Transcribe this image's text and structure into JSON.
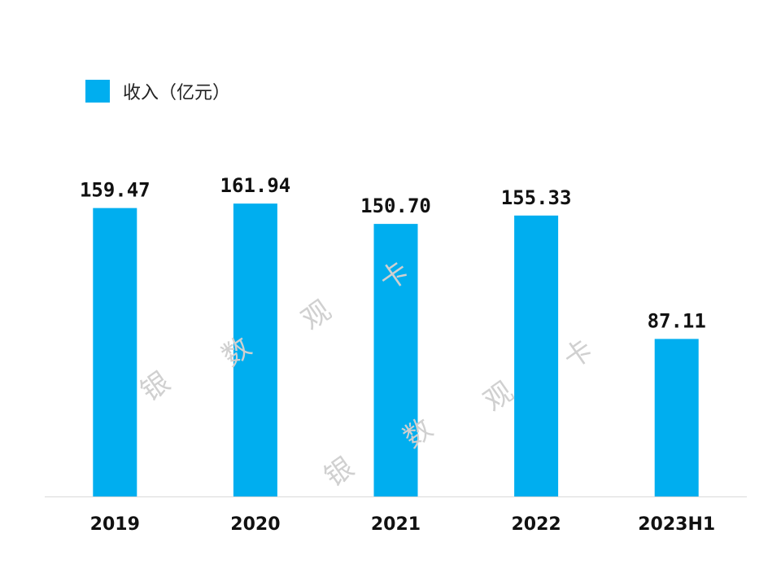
{
  "chart_data": {
    "type": "bar",
    "categories": [
      "2019",
      "2020",
      "2021",
      "2022",
      "2023H1"
    ],
    "series": [
      {
        "name": "收入（亿元）",
        "values": [
          159.47,
          161.94,
          150.7,
          155.33,
          87.11
        ],
        "color": "#00AEEF"
      }
    ],
    "data_labels": [
      "159.47",
      "161.94",
      "150.70",
      "155.33",
      "87.11"
    ],
    "ylim": [
      0,
      180
    ],
    "grid": false,
    "legend": "top-left",
    "y_axis_visible": false
  },
  "watermark": [
    "银",
    "数",
    "观",
    "卡"
  ]
}
